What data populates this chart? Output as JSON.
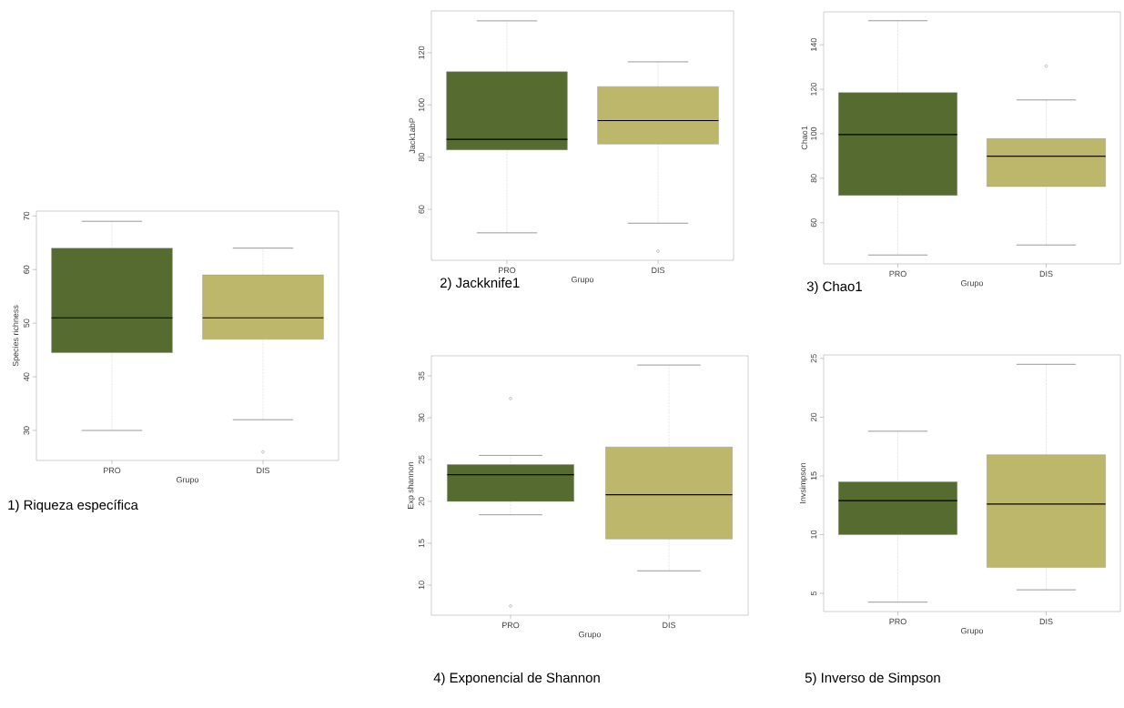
{
  "chart_data": [
    {
      "type": "box",
      "title": "1) Riqueza específica",
      "xlabel": "Grupo",
      "ylabel": "Species richness",
      "categories": [
        "PRO",
        "DIS"
      ],
      "colors": [
        "#556b2f",
        "#bdb76b"
      ],
      "ylim": [
        24.4,
        70.9
      ],
      "yticks": [
        30,
        40,
        50,
        60,
        70
      ],
      "boxes": [
        {
          "low": 30,
          "q1": 44.5,
          "median": 51,
          "q3": 64,
          "high": 69
        },
        {
          "low": 32,
          "q1": 47,
          "median": 51,
          "q3": 59,
          "high": 64,
          "outliers": [
            26
          ]
        }
      ]
    },
    {
      "type": "box",
      "title": "2) Jackknife1",
      "xlabel": "Grupo",
      "ylabel": "Jack1abP",
      "categories": [
        "PRO",
        "DIS"
      ],
      "colors": [
        "#556b2f",
        "#bdb76b"
      ],
      "ylim": [
        40.5,
        136
      ],
      "yticks": [
        60,
        80,
        100,
        120
      ],
      "boxes": [
        {
          "low": 51,
          "q1": 82.8,
          "median": 86.8,
          "q3": 112.7,
          "high": 132.2
        },
        {
          "low": 54.7,
          "q1": 85,
          "median": 94,
          "q3": 107,
          "high": 116.5,
          "outliers": [
            44
          ]
        }
      ]
    },
    {
      "type": "box",
      "title": "3) Chao1",
      "xlabel": "Grupo",
      "ylabel": "Chao1",
      "categories": [
        "PRO",
        "DIS"
      ],
      "colors": [
        "#556b2f",
        "#bdb76b"
      ],
      "ylim": [
        41.5,
        154.8
      ],
      "yticks": [
        60,
        80,
        100,
        120,
        140
      ],
      "boxes": [
        {
          "low": 45.5,
          "q1": 72.3,
          "median": 99.6,
          "q3": 118.5,
          "high": 150.8
        },
        {
          "low": 50,
          "q1": 76.3,
          "median": 89.9,
          "q3": 97.8,
          "high": 115.2,
          "outliers": [
            130.4
          ]
        }
      ]
    },
    {
      "type": "box",
      "title": "4) Exponencial de Shannon",
      "xlabel": "Grupo",
      "ylabel": "Exp shannon",
      "categories": [
        "PRO",
        "DIS"
      ],
      "colors": [
        "#556b2f",
        "#bdb76b"
      ],
      "ylim": [
        6.4,
        37.4
      ],
      "yticks": [
        10,
        15,
        20,
        25,
        30,
        35
      ],
      "boxes": [
        {
          "low": 18.4,
          "q1": 20,
          "median": 23.2,
          "q3": 24.4,
          "high": 25.5,
          "outliers": [
            32.3,
            7.5
          ]
        },
        {
          "low": 11.7,
          "q1": 15.5,
          "median": 20.8,
          "q3": 26.5,
          "high": 36.3
        }
      ]
    },
    {
      "type": "box",
      "title": "5) Inverso de Simpson",
      "xlabel": "Grupo",
      "ylabel": "Invsimpson",
      "categories": [
        "PRO",
        "DIS"
      ],
      "colors": [
        "#556b2f",
        "#bdb76b"
      ],
      "ylim": [
        3.45,
        25.3
      ],
      "yticks": [
        5,
        10,
        15,
        20,
        25
      ],
      "boxes": [
        {
          "low": 4.25,
          "q1": 10,
          "median": 12.9,
          "q3": 14.5,
          "high": 18.8
        },
        {
          "low": 5.3,
          "q1": 7.2,
          "median": 12.6,
          "q3": 16.8,
          "high": 24.5
        }
      ]
    }
  ]
}
